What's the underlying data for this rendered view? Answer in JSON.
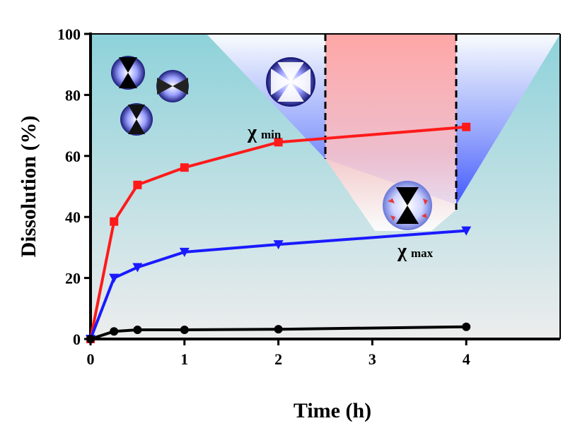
{
  "chart_data": {
    "type": "line",
    "xlabel": "Time (h)",
    "ylabel": "Dissolution  (%)",
    "xlim": [
      0,
      5
    ],
    "ylim": [
      0,
      100
    ],
    "xticks": [
      "0",
      "1",
      "2",
      "3",
      "4"
    ],
    "yticks": [
      "0",
      "20",
      "40",
      "60",
      "80",
      "100"
    ],
    "grid": false,
    "series": [
      {
        "marker": "square",
        "color": "#ff1a1a",
        "x": [
          0,
          0.25,
          0.5,
          1,
          2,
          4
        ],
        "y": [
          0,
          38.5,
          50.5,
          56.2,
          64.5,
          69.5
        ]
      },
      {
        "marker": "triangle-down",
        "color": "#1a1aff",
        "x": [
          0,
          0.25,
          0.5,
          1,
          2,
          4
        ],
        "y": [
          0,
          20,
          23.5,
          28.5,
          31,
          35.5
        ]
      },
      {
        "marker": "circle",
        "color": "#000000",
        "x": [
          0,
          0.25,
          0.5,
          1,
          2,
          4
        ],
        "y": [
          0,
          2.5,
          3,
          3,
          3.2,
          4
        ]
      }
    ],
    "annotations": [
      {
        "label": "χ",
        "sub": "min"
      },
      {
        "label": "χ",
        "sub": "max"
      }
    ],
    "background": {
      "gradient_top": "#8ed2da",
      "gradient_bottom": "#ececec",
      "blue_wedge": "#4d62ff",
      "red_zone": "#ffb3b3"
    }
  }
}
